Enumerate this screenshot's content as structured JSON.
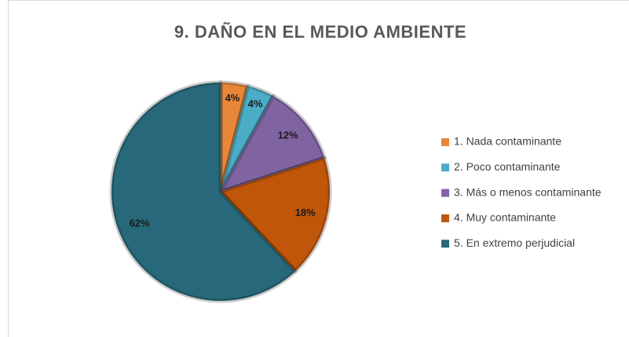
{
  "chart_data": {
    "type": "pie",
    "title": "9. DAÑO EN EL MEDIO AMBIENTE",
    "categories": [
      "1. Nada contaminante",
      "2. Poco contaminante",
      "3. Más o menos contaminante",
      "4. Muy contaminante",
      "5. En extremo perjudicial"
    ],
    "values": [
      4,
      4,
      12,
      18,
      62
    ],
    "value_labels": [
      "4%",
      "4%",
      "12%",
      "18%",
      "62%"
    ],
    "colors": [
      "#e8873a",
      "#4bacc6",
      "#8064a2",
      "#c0560a",
      "#27697a"
    ],
    "legend": "right"
  }
}
